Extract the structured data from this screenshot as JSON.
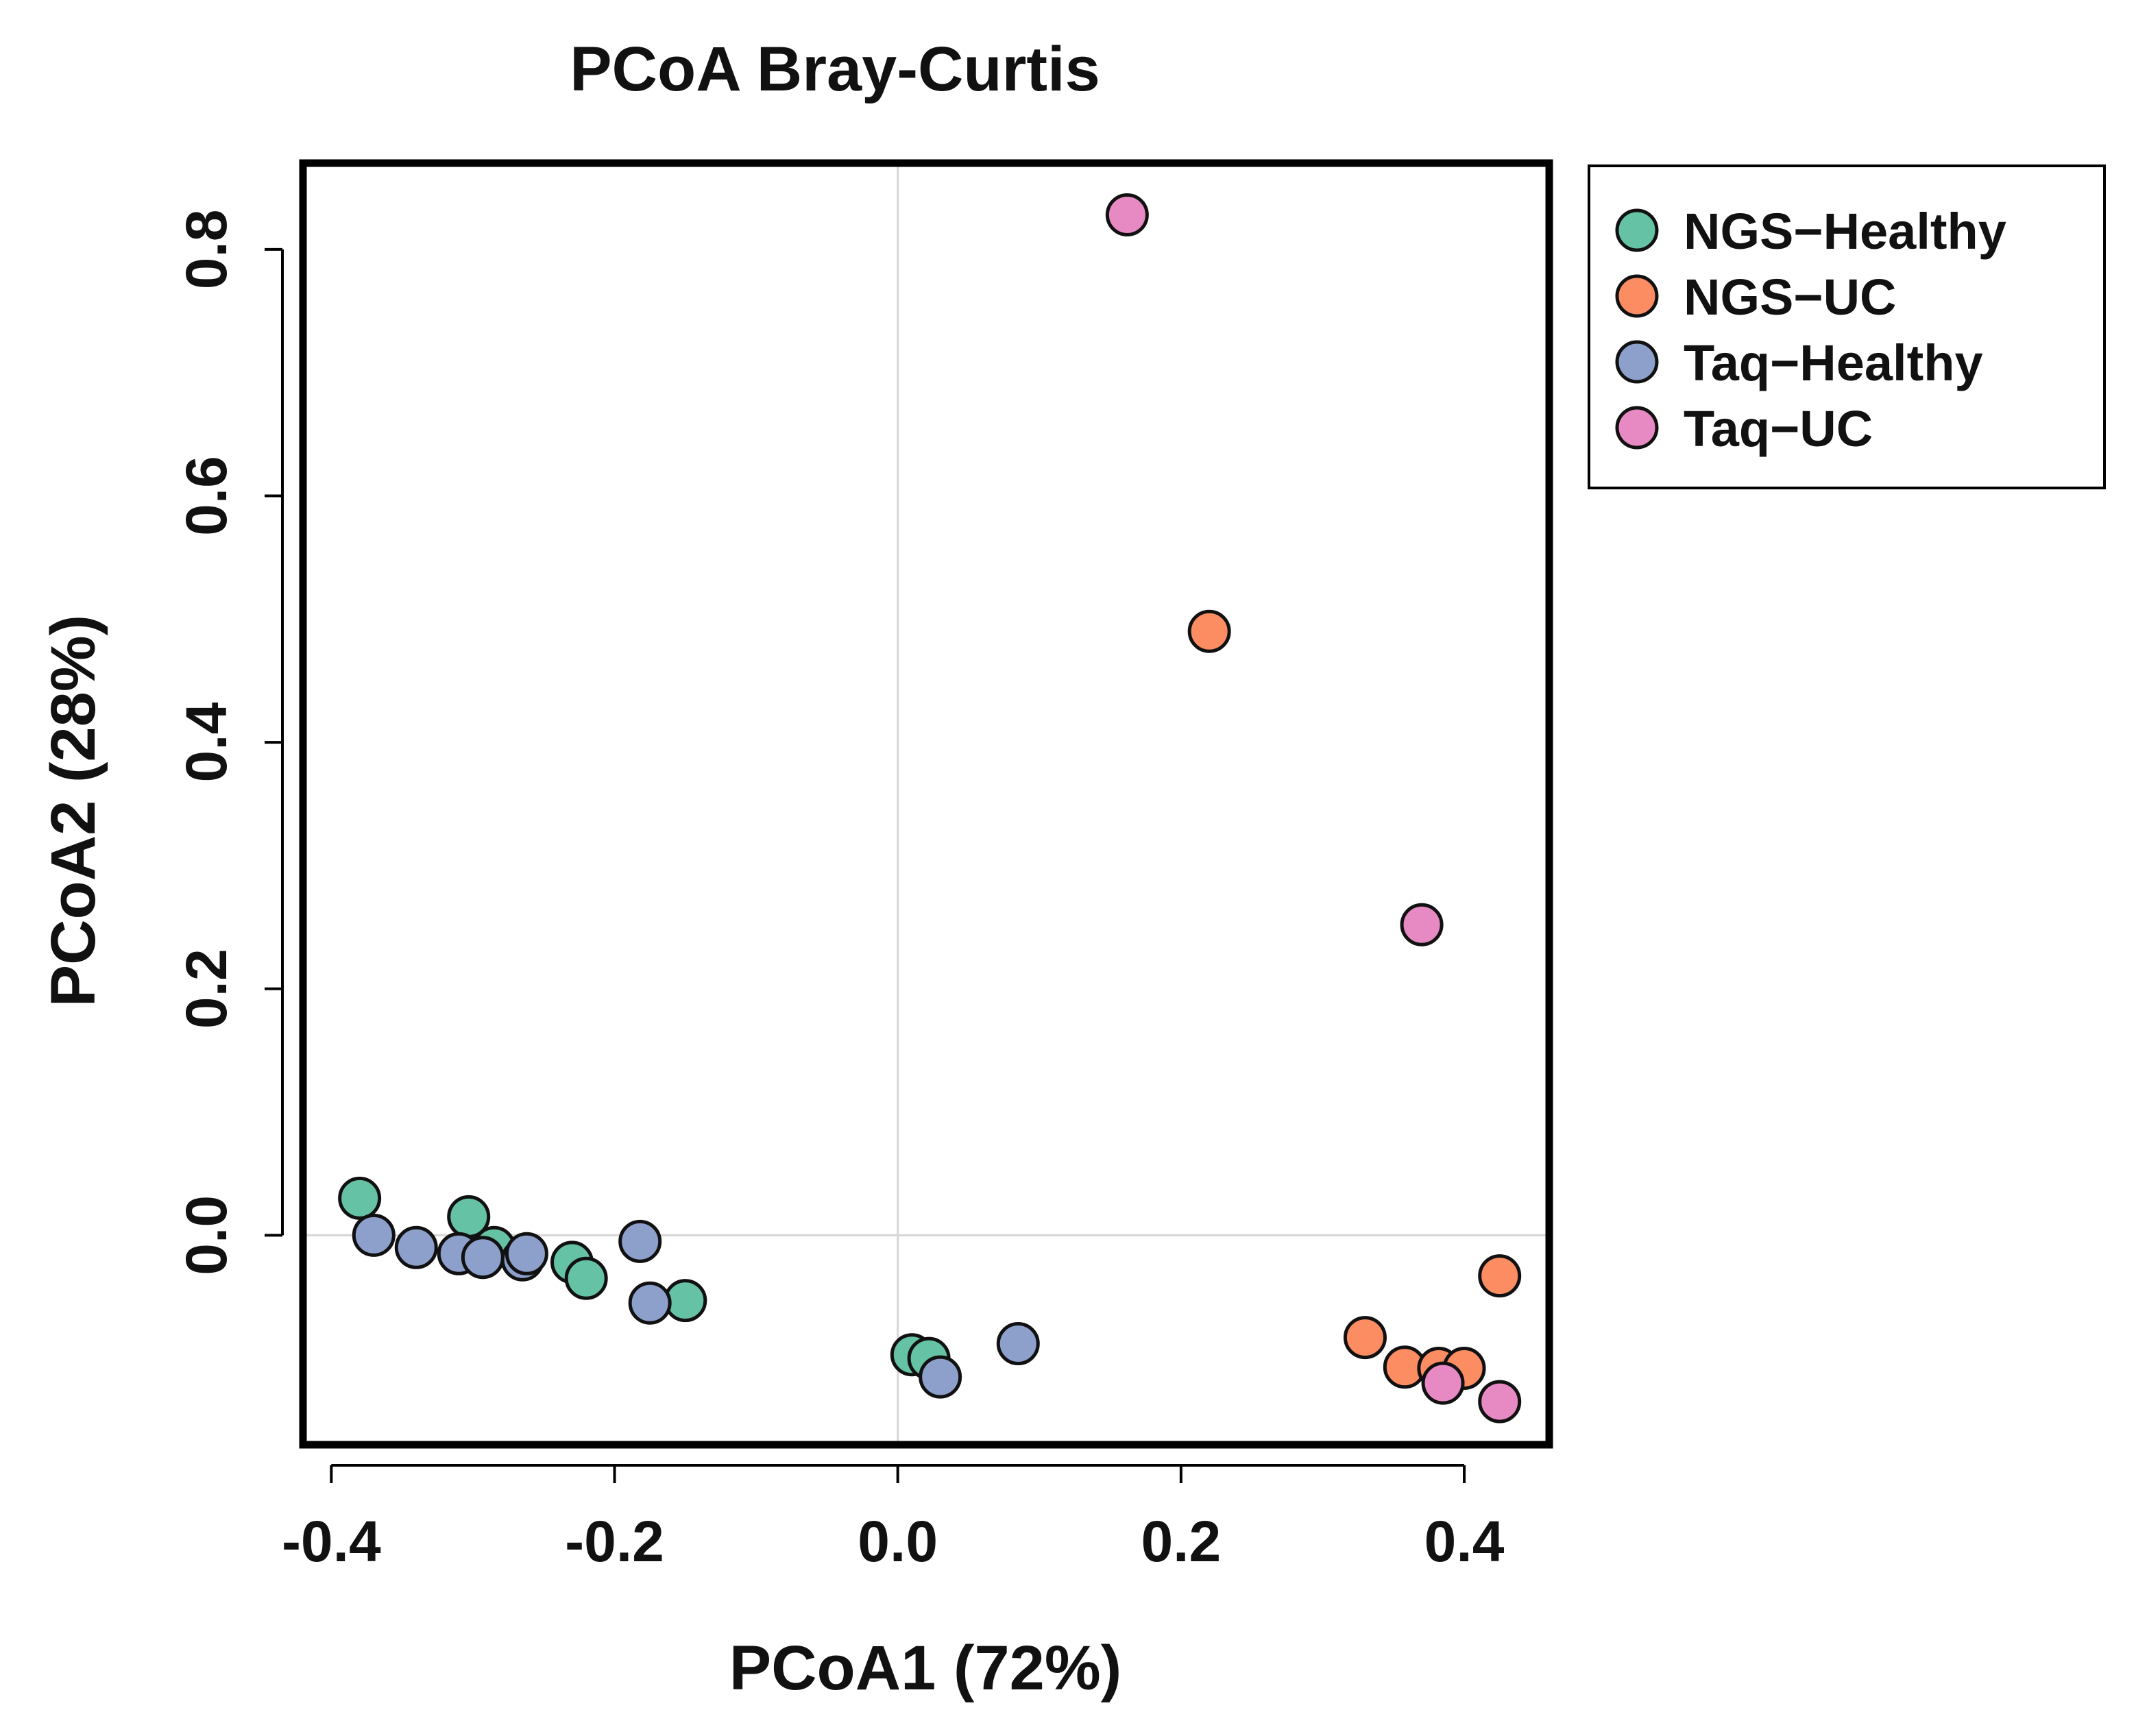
{
  "chart_data": {
    "type": "scatter",
    "title": "PCoA Bray-Curtis",
    "xlabel": "PCoA1 (72%)",
    "ylabel": "PCoA2 (28%)",
    "xlim": [
      -0.42,
      0.46
    ],
    "ylim": [
      -0.17,
      0.87
    ],
    "xticks": [
      -0.4,
      -0.2,
      0.0,
      0.2,
      0.4
    ],
    "xtick_labels": [
      "-0.4",
      "-0.2",
      "0.0",
      "0.2",
      "0.4"
    ],
    "yticks": [
      0.0,
      0.2,
      0.4,
      0.6,
      0.8
    ],
    "ytick_labels": [
      "0.0",
      "0.2",
      "0.4",
      "0.6",
      "0.8"
    ],
    "reference_lines": {
      "x": 0,
      "y": 0
    },
    "grid": false,
    "legend_position": "outside-top-right",
    "series": [
      {
        "name": "NGS−Healthy",
        "color": "#66c2a5",
        "points": [
          {
            "x": -0.38,
            "y": 0.03
          },
          {
            "x": -0.303,
            "y": 0.015
          },
          {
            "x": -0.285,
            "y": -0.01
          },
          {
            "x": -0.23,
            "y": -0.022
          },
          {
            "x": -0.22,
            "y": -0.035
          },
          {
            "x": -0.15,
            "y": -0.053
          },
          {
            "x": 0.01,
            "y": -0.097
          },
          {
            "x": 0.022,
            "y": -0.1
          }
        ]
      },
      {
        "name": "NGS−UC",
        "color": "#fc8d62",
        "points": [
          {
            "x": 0.22,
            "y": 0.49
          },
          {
            "x": 0.425,
            "y": -0.033
          },
          {
            "x": 0.33,
            "y": -0.083
          },
          {
            "x": 0.358,
            "y": -0.107
          },
          {
            "x": 0.382,
            "y": -0.108
          },
          {
            "x": 0.4,
            "y": -0.108
          }
        ]
      },
      {
        "name": "Taq−Healthy",
        "color": "#8da0cb",
        "points": [
          {
            "x": -0.37,
            "y": 0.0
          },
          {
            "x": -0.34,
            "y": -0.01
          },
          {
            "x": -0.31,
            "y": -0.015
          },
          {
            "x": -0.293,
            "y": -0.018
          },
          {
            "x": -0.265,
            "y": -0.02
          },
          {
            "x": -0.262,
            "y": -0.015
          },
          {
            "x": -0.182,
            "y": -0.005
          },
          {
            "x": -0.175,
            "y": -0.055
          },
          {
            "x": 0.085,
            "y": -0.088
          },
          {
            "x": 0.03,
            "y": -0.115
          }
        ]
      },
      {
        "name": "Taq−UC",
        "color": "#e78ac3",
        "points": [
          {
            "x": 0.162,
            "y": 0.828
          },
          {
            "x": 0.37,
            "y": 0.252
          },
          {
            "x": 0.385,
            "y": -0.12
          },
          {
            "x": 0.425,
            "y": -0.135
          }
        ]
      }
    ]
  }
}
